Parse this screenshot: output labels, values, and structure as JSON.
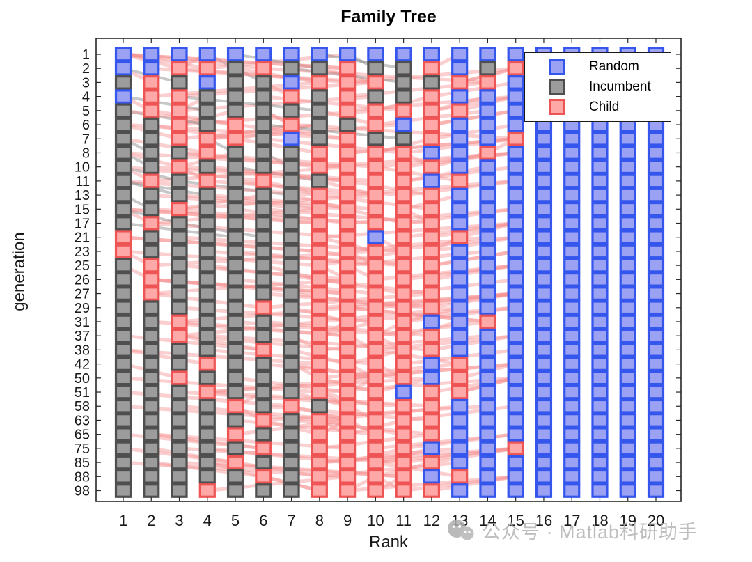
{
  "title": "Family Tree",
  "xlabel": "Rank",
  "ylabel": "generation",
  "legend": [
    {
      "key": "B",
      "label": "Random"
    },
    {
      "key": "G",
      "label": "Incumbent"
    },
    {
      "key": "C",
      "label": "Child"
    }
  ],
  "watermark": {
    "text": "公众号 · Matlab科研助手"
  },
  "colors": {
    "B": {
      "fill": "#9ba2f3",
      "edge": "#3456ed"
    },
    "G": {
      "fill": "#9c9c9c",
      "edge": "#4f4f4f"
    },
    "C": {
      "fill": "#ffa8a8",
      "edge": "#ee5454"
    },
    "child_line": "#f68c8c",
    "gray_line": "#6e6e6e",
    "axis": "#262626"
  },
  "chart_data": {
    "type": "heatmap",
    "title": "Family Tree",
    "xlabel": "Rank",
    "ylabel": "generation",
    "legend": [
      "Random",
      "Incumbent",
      "Child"
    ],
    "legend_position": "northeast",
    "grid": false,
    "x_ticks": [
      "1",
      "2",
      "3",
      "4",
      "5",
      "6",
      "7",
      "8",
      "9",
      "10",
      "11",
      "12",
      "13",
      "14",
      "15",
      "16",
      "17",
      "18",
      "19",
      "20"
    ],
    "y_ticks": [
      "1",
      "2",
      "3",
      "4",
      "5",
      "6",
      "7",
      "8",
      "10",
      "11",
      "13",
      "15",
      "17",
      "21",
      "23",
      "25",
      "26",
      "27",
      "29",
      "31",
      "37",
      "38",
      "42",
      "50",
      "51",
      "58",
      "63",
      "65",
      "75",
      "85",
      "88",
      "98"
    ],
    "cell_legend": {
      "B": "Random",
      "G": "Incumbent",
      "C": "Child"
    },
    "rows": [
      "BBBBBBBBBBBBBBBBBBBB",
      "BBCCGCGGCGGCBGCBBBBB",
      "GCGBGGBCCCGGCCBBBBBB",
      "BCCGGGCGCGGCBBBBBBBB",
      "GCCGGGGGCCCCCBBBBBBB",
      "GGCGCGCGGCBCBBBBBBBB",
      "GGCCCGBGCGGCBBCBBBBB",
      "GGGCGGGCCCCBBCBBBBBB",
      "GGCGGGGCCCCCBBBBBBBB",
      "GCGCGCGGCCCBCBBBBBBB",
      "GGGGGGGCCCCCBBBBBBBB",
      "GGCGGGGCCCCCBBBBBBBB",
      "GCGGGGGCCCCCBBBBBBBB",
      "CGGGGGGCCBCCCBBBBBBB",
      "CGGGGGGCCCCCBBBBBBBB",
      "GCGGGGGCCCCCBBBBBBBB",
      "GCGGGGGCCCCCBBBBBBBB",
      "GCGGGGGCCCCCBBBBBBBB",
      "GGGGGCGCCCCCBBBBBBBB",
      "GGCGGGGCCCCBBCBBBBBB",
      "GGCGGGGCCCCCBBBBBBBB",
      "GGGGGCGCCCCCBBBBBBBB",
      "GGGCGGGCCCCBCBBBBBBB",
      "GGCGGGGCCCCBCBBBBBBB",
      "GGGCGGGCCCBCCBBBBBBB",
      "GGGGCGCGCCCCBBBBBBBB",
      "GGGGGCGCCCCCBBBBBBBB",
      "GGGGCGGCCCCCBBBBBBBB",
      "GGGGGCGCCCCBBBCBBBBB",
      "GGGGCGGCCCCCBBBBBBBB",
      "GGGGGCGCCCCBCBBBBBBB",
      "GGGCGGGCCCCCBBBBBBBB"
    ]
  }
}
